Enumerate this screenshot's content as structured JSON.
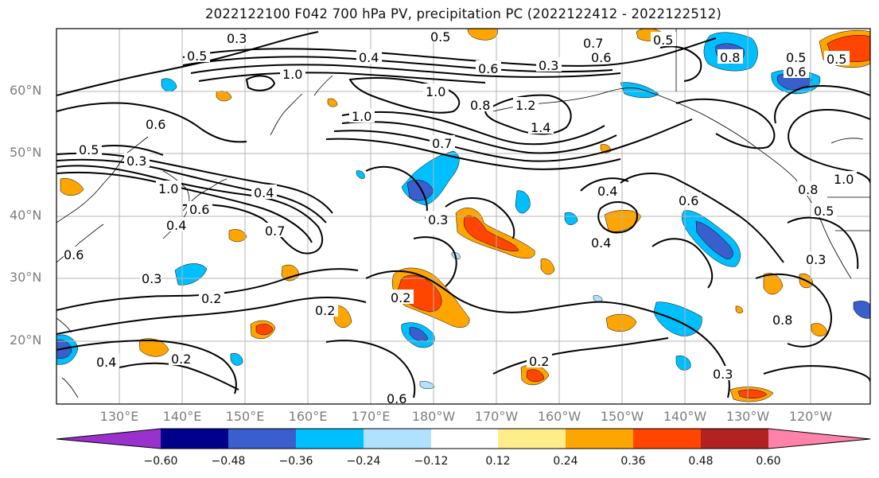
{
  "title": "2022122100 F042 700 hPa PV, precipitation PC (2022122412 - 2022122512)",
  "map": {
    "lat_labels": [
      "60°N",
      "50°N",
      "40°N",
      "30°N",
      "20°N"
    ],
    "lon_labels": [
      "130°E",
      "140°E",
      "150°E",
      "160°E",
      "170°E",
      "180°W",
      "170°W",
      "160°W",
      "150°W",
      "140°W",
      "130°W",
      "120°W"
    ],
    "contour_labels": [
      "0.3",
      "0.5",
      "0.4",
      "0.5",
      "0.7",
      "0.6",
      "0.5",
      "1.0",
      "0.6",
      "0.3",
      "0.5",
      "1.0",
      "1.0",
      "0.8",
      "1.2",
      "1.4",
      "0.6",
      "0.5",
      "0.7",
      "0.3",
      "1.0",
      "0.4",
      "0.6",
      "0.4",
      "0.7",
      "0.4",
      "0.6",
      "0.3",
      "0.3",
      "0.2",
      "0.2",
      "0.2",
      "0.4",
      "0.2",
      "0.2",
      "0.6",
      "0.4",
      "0.8",
      "0.5",
      "1.0",
      "0.5",
      "0.8",
      "0.3",
      "0.3",
      "0.6",
      "0.8",
      "0.6"
    ]
  },
  "colorbar": {
    "tick_labels": [
      "−0.60",
      "−0.48",
      "−0.36",
      "−0.24",
      "−0.12",
      "0.12",
      "0.24",
      "0.36",
      "0.48",
      "0.60"
    ],
    "colors": [
      "#9932cc",
      "#00008b",
      "#3a5fcd",
      "#00bfff",
      "#b0e2ff",
      "#ffffff",
      "#ffec8b",
      "#ffa500",
      "#ff4500",
      "#b22222",
      "#ff82ab"
    ]
  }
}
